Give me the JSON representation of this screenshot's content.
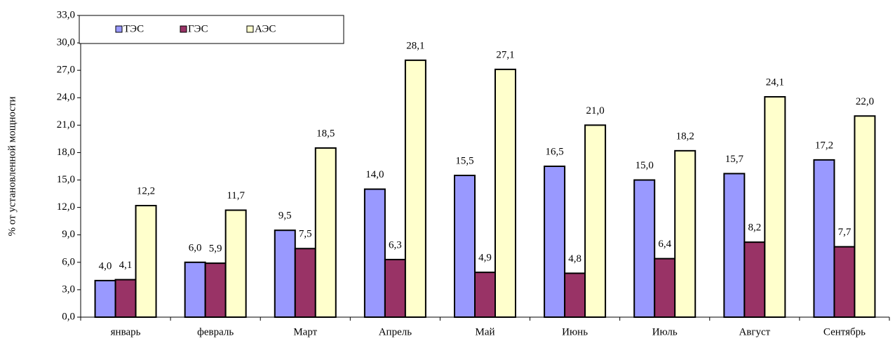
{
  "chart_data": {
    "type": "bar",
    "y_label": "% от установленной мощности",
    "categories": [
      "январь",
      "февраль",
      "Март",
      "Апрель",
      "Май",
      "Июнь",
      "Июль",
      "Август",
      "Сентябрь"
    ],
    "series": [
      {
        "name": "ТЭС",
        "color": "#9999ff",
        "values": [
          4.0,
          6.0,
          9.5,
          14.0,
          15.5,
          16.5,
          15.0,
          15.7,
          17.2
        ],
        "value_labels": [
          "4,0",
          "6,0",
          "9,5",
          "14,0",
          "15,5",
          "16,5",
          "15,0",
          "15,7",
          "17,2"
        ]
      },
      {
        "name": "ГЭС",
        "color": "#993366",
        "values": [
          4.1,
          5.9,
          7.5,
          6.3,
          4.9,
          4.8,
          6.4,
          8.2,
          7.7
        ],
        "value_labels": [
          "4,1",
          "5,9",
          "7,5",
          "6,3",
          "4,9",
          "4,8",
          "6,4",
          "8,2",
          "7,7"
        ]
      },
      {
        "name": "АЭС",
        "color": "#ffffcc",
        "values": [
          12.2,
          11.7,
          18.5,
          28.1,
          27.1,
          21.0,
          18.2,
          24.1,
          22.0
        ],
        "value_labels": [
          "12,2",
          "11,7",
          "18,5",
          "28,1",
          "27,1",
          "21,0",
          "18,2",
          "24,1",
          "22,0"
        ]
      }
    ],
    "ylim": [
      0,
      33
    ],
    "yticks": [
      {
        "value": 0,
        "label": "0,0"
      },
      {
        "value": 3,
        "label": "3,0"
      },
      {
        "value": 6,
        "label": "6,0"
      },
      {
        "value": 9,
        "label": "9,0"
      },
      {
        "value": 12,
        "label": "12,0"
      },
      {
        "value": 15,
        "label": "15,0"
      },
      {
        "value": 18,
        "label": "18,0"
      },
      {
        "value": 21,
        "label": "21,0"
      },
      {
        "value": 24,
        "label": "24,0"
      },
      {
        "value": 27,
        "label": "27,0"
      },
      {
        "value": 30,
        "label": "30,0"
      },
      {
        "value": 33,
        "label": "33,0"
      }
    ],
    "grid": false,
    "legend": "top-left"
  }
}
